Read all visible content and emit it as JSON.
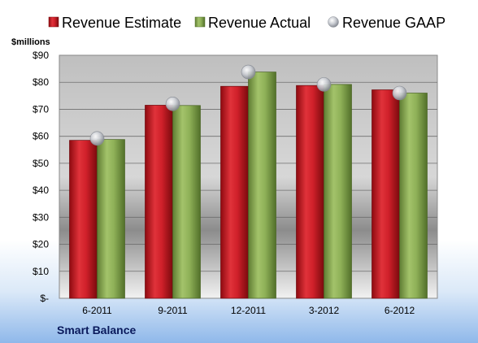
{
  "chart_data": {
    "type": "bar",
    "title": "Smart Balance",
    "unit_label": "$millions",
    "categories": [
      "6-2011",
      "9-2011",
      "12-2011",
      "3-2012",
      "6-2012"
    ],
    "series": [
      {
        "name": "Revenue Estimate",
        "kind": "bar",
        "values": [
          58.5,
          71.5,
          78.5,
          78.8,
          77.2
        ]
      },
      {
        "name": "Revenue Actual",
        "kind": "bar",
        "values": [
          58.8,
          71.4,
          83.8,
          79.2,
          76.0
        ]
      },
      {
        "name": "Revenue GAAP",
        "kind": "scatter",
        "values": [
          59.2,
          72.0,
          83.8,
          79.2,
          76.0
        ]
      }
    ],
    "ylim": [
      0,
      90
    ],
    "yticks": [
      0,
      10,
      20,
      30,
      40,
      50,
      60,
      70,
      80,
      90
    ],
    "ytick_labels": [
      "$-",
      "$10",
      "$20",
      "$30",
      "$40",
      "$50",
      "$60",
      "$70",
      "$80",
      "$90"
    ],
    "grid": true,
    "legend_position": "top",
    "colors": {
      "estimate": "#c8141e",
      "actual": "#7fa14a",
      "gaap": "#b8bcc4"
    }
  }
}
